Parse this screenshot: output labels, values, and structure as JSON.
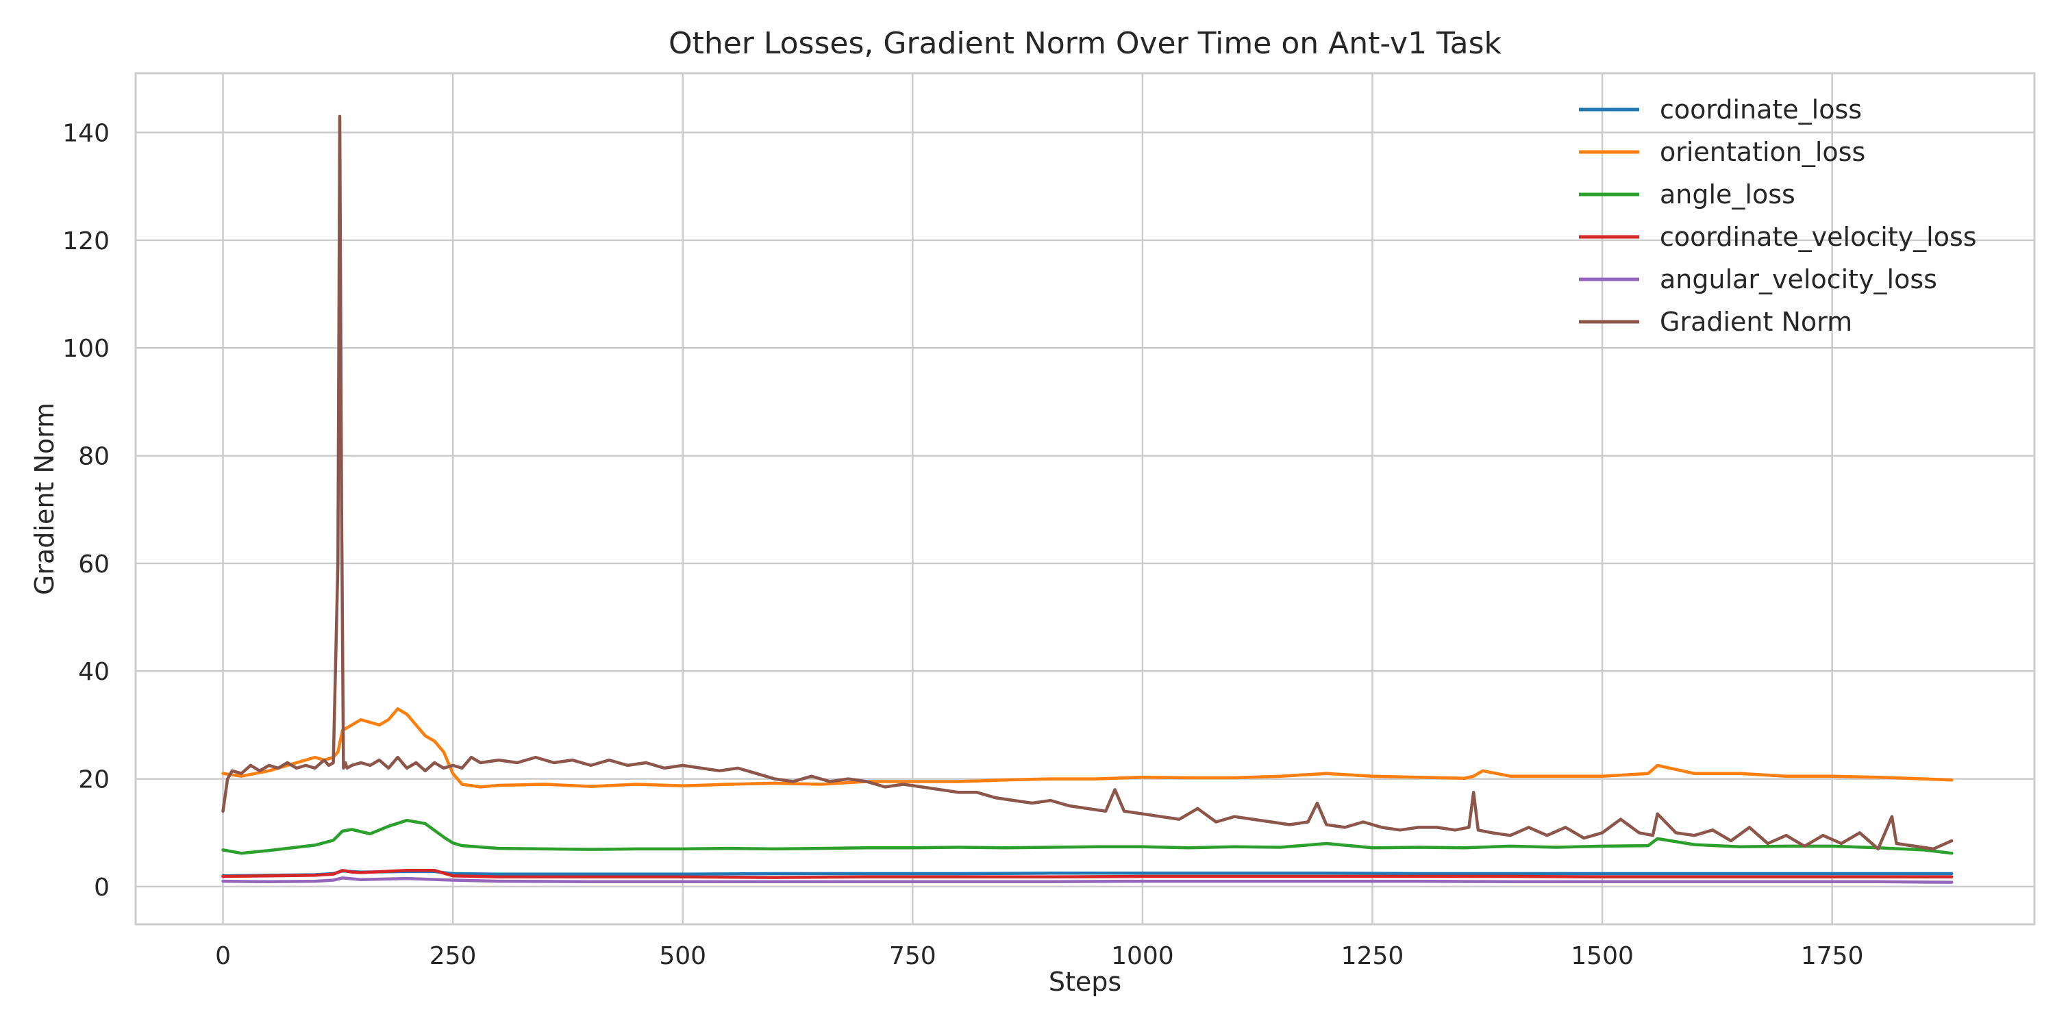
{
  "chart_data": {
    "type": "line",
    "title": "Other Losses, Gradient Norm Over Time on Ant-v1 Task",
    "xlabel": "Steps",
    "ylabel": "Gradient Norm",
    "xlim": [
      -95,
      1970
    ],
    "ylim": [
      -7,
      151
    ],
    "xticks": [
      0,
      250,
      500,
      750,
      1000,
      1250,
      1500,
      1750
    ],
    "xtick_labels": [
      "0",
      "250",
      "500",
      "750",
      "1000",
      "1250",
      "1500",
      "1750"
    ],
    "yticks": [
      0,
      20,
      40,
      60,
      80,
      100,
      120,
      140
    ],
    "ytick_labels": [
      "0",
      "20",
      "40",
      "60",
      "80",
      "100",
      "120",
      "140"
    ],
    "grid": true,
    "legend_position": "top-right",
    "series": [
      {
        "name": "coordinate_loss",
        "color": "#1f77b4",
        "x": [
          0,
          50,
          100,
          120,
          130,
          150,
          200,
          230,
          250,
          300,
          400,
          500,
          600,
          700,
          800,
          900,
          1000,
          1100,
          1200,
          1300,
          1400,
          1500,
          1600,
          1700,
          1800,
          1880
        ],
        "y": [
          2.0,
          2.1,
          2.2,
          2.4,
          2.9,
          2.7,
          2.8,
          2.8,
          2.4,
          2.3,
          2.3,
          2.3,
          2.4,
          2.4,
          2.4,
          2.5,
          2.5,
          2.5,
          2.5,
          2.4,
          2.4,
          2.4,
          2.4,
          2.4,
          2.4,
          2.4
        ]
      },
      {
        "name": "orientation_loss",
        "color": "#ff7f0e",
        "x": [
          0,
          20,
          50,
          80,
          100,
          110,
          120,
          125,
          130,
          140,
          150,
          160,
          170,
          180,
          190,
          200,
          210,
          220,
          230,
          240,
          250,
          260,
          280,
          300,
          350,
          400,
          450,
          500,
          550,
          600,
          650,
          700,
          750,
          800,
          850,
          900,
          950,
          1000,
          1050,
          1100,
          1150,
          1200,
          1250,
          1300,
          1350,
          1360,
          1370,
          1400,
          1450,
          1500,
          1550,
          1560,
          1600,
          1650,
          1700,
          1750,
          1800,
          1850,
          1880
        ],
        "y": [
          21,
          20.5,
          21.5,
          23,
          24,
          23.5,
          24,
          25,
          29,
          30,
          31,
          30.5,
          30,
          31,
          33,
          32,
          30,
          28,
          27,
          25,
          21,
          19,
          18.5,
          18.8,
          19,
          18.6,
          19,
          18.7,
          19,
          19.2,
          19,
          19.5,
          19.5,
          19.5,
          19.8,
          20,
          20,
          20.3,
          20.2,
          20.2,
          20.5,
          21,
          20.5,
          20.3,
          20.1,
          20.5,
          21.5,
          20.5,
          20.5,
          20.5,
          21,
          22.5,
          21,
          21,
          20.5,
          20.5,
          20.3,
          20,
          19.8
        ]
      },
      {
        "name": "angle_loss",
        "color": "#2ca02c",
        "x": [
          0,
          20,
          50,
          80,
          100,
          120,
          130,
          140,
          160,
          180,
          200,
          220,
          240,
          250,
          260,
          300,
          350,
          400,
          450,
          500,
          550,
          600,
          650,
          700,
          750,
          800,
          850,
          900,
          950,
          1000,
          1050,
          1100,
          1150,
          1200,
          1250,
          1300,
          1350,
          1400,
          1450,
          1500,
          1550,
          1560,
          1600,
          1650,
          1700,
          1750,
          1800,
          1850,
          1880
        ],
        "y": [
          6.8,
          6.2,
          6.7,
          7.3,
          7.7,
          8.6,
          10.3,
          10.6,
          9.8,
          11.2,
          12.3,
          11.7,
          9.2,
          8.1,
          7.6,
          7.1,
          7.0,
          6.9,
          7.0,
          7.0,
          7.1,
          7.0,
          7.1,
          7.2,
          7.2,
          7.3,
          7.2,
          7.3,
          7.4,
          7.4,
          7.2,
          7.4,
          7.3,
          8.0,
          7.2,
          7.3,
          7.2,
          7.5,
          7.3,
          7.5,
          7.6,
          8.9,
          7.8,
          7.4,
          7.5,
          7.5,
          7.2,
          6.8,
          6.2
        ]
      },
      {
        "name": "coordinate_velocity_loss",
        "color": "#d62728",
        "x": [
          0,
          50,
          100,
          120,
          130,
          140,
          150,
          200,
          230,
          250,
          300,
          400,
          500,
          600,
          700,
          800,
          900,
          1000,
          1100,
          1200,
          1300,
          1400,
          1500,
          1600,
          1700,
          1800,
          1880
        ],
        "y": [
          1.9,
          2.0,
          2.1,
          2.3,
          3.0,
          2.7,
          2.6,
          3.0,
          3.0,
          2.0,
          1.8,
          1.8,
          1.8,
          1.7,
          1.8,
          1.8,
          1.8,
          1.9,
          1.9,
          1.9,
          1.9,
          1.9,
          1.8,
          1.8,
          1.8,
          1.8,
          1.8
        ]
      },
      {
        "name": "angular_velocity_loss",
        "color": "#9467bd",
        "x": [
          0,
          50,
          100,
          120,
          130,
          150,
          200,
          250,
          300,
          400,
          500,
          600,
          700,
          800,
          900,
          1000,
          1100,
          1200,
          1300,
          1400,
          1500,
          1600,
          1700,
          1800,
          1880
        ],
        "y": [
          1.0,
          0.9,
          1.0,
          1.2,
          1.6,
          1.3,
          1.5,
          1.2,
          1.0,
          0.9,
          0.9,
          0.9,
          0.9,
          0.9,
          0.9,
          1.0,
          1.0,
          1.0,
          1.0,
          0.9,
          0.9,
          0.9,
          0.9,
          0.9,
          0.8
        ]
      },
      {
        "name": "Gradient Norm",
        "color": "#8c564b",
        "x": [
          0,
          5,
          10,
          20,
          30,
          40,
          50,
          60,
          70,
          80,
          90,
          100,
          110,
          115,
          120,
          125,
          127,
          129,
          131,
          133,
          135,
          140,
          150,
          160,
          170,
          180,
          190,
          200,
          210,
          220,
          230,
          240,
          250,
          260,
          270,
          280,
          300,
          320,
          340,
          360,
          380,
          400,
          420,
          440,
          460,
          480,
          500,
          520,
          540,
          560,
          580,
          600,
          620,
          640,
          660,
          680,
          700,
          720,
          740,
          760,
          780,
          800,
          820,
          840,
          860,
          880,
          900,
          920,
          940,
          960,
          970,
          980,
          1000,
          1020,
          1040,
          1060,
          1080,
          1100,
          1120,
          1140,
          1160,
          1180,
          1190,
          1200,
          1220,
          1240,
          1260,
          1280,
          1300,
          1320,
          1340,
          1355,
          1360,
          1365,
          1380,
          1400,
          1420,
          1440,
          1460,
          1480,
          1500,
          1520,
          1540,
          1555,
          1560,
          1580,
          1600,
          1620,
          1640,
          1660,
          1680,
          1700,
          1720,
          1740,
          1760,
          1780,
          1800,
          1815,
          1820,
          1840,
          1860,
          1880
        ],
        "y": [
          14,
          20,
          21.5,
          21,
          22.5,
          21.5,
          22.5,
          22,
          23,
          22,
          22.5,
          22,
          23.5,
          22.5,
          23,
          60,
          143,
          70,
          22,
          23,
          22,
          22.5,
          23,
          22.5,
          23.5,
          22,
          24,
          22,
          23,
          21.5,
          23,
          22,
          22.5,
          22,
          24,
          23,
          23.5,
          23,
          24,
          23,
          23.5,
          22.5,
          23.5,
          22.5,
          23,
          22,
          22.5,
          22,
          21.5,
          22,
          21,
          20,
          19.5,
          20.5,
          19.5,
          20,
          19.5,
          18.5,
          19,
          18.5,
          18,
          17.5,
          17.5,
          16.5,
          16,
          15.5,
          16,
          15,
          14.5,
          14,
          18,
          14,
          13.5,
          13,
          12.5,
          14.5,
          12,
          13,
          12.5,
          12,
          11.5,
          12,
          15.5,
          11.5,
          11,
          12,
          11,
          10.5,
          11,
          11,
          10.5,
          11,
          17.5,
          10.5,
          10,
          9.5,
          11,
          9.5,
          11,
          9,
          10,
          12.5,
          10,
          9.5,
          13.5,
          10,
          9.5,
          10.5,
          8.5,
          11,
          8,
          9.5,
          7.5,
          9.5,
          8,
          10,
          7,
          13,
          8,
          7.5,
          7,
          8.5
        ]
      }
    ]
  }
}
